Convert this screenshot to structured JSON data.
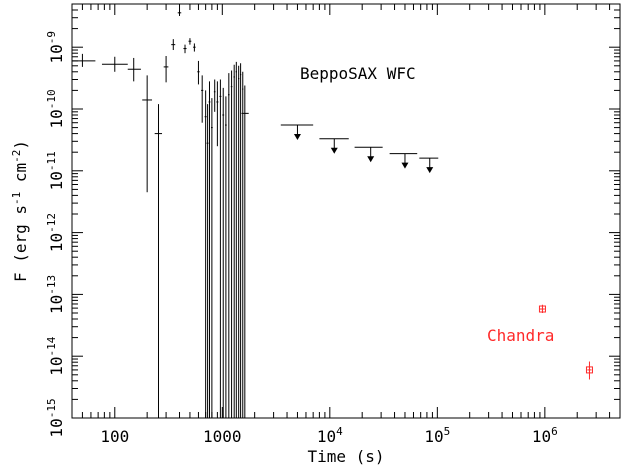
{
  "chart_data": {
    "type": "scatter",
    "title": "",
    "xlabel": "Time (s)",
    "ylabel_parts": {
      "lead": "F (erg s",
      "exp1": "-1",
      "mid": " cm",
      "exp2": "-2",
      "tail": ")"
    },
    "x_scale": "log",
    "y_scale": "log",
    "xlim": [
      40,
      5000000
    ],
    "ylim": [
      1e-15,
      5e-09
    ],
    "x_ticks": [
      {
        "value": 100,
        "base": "100",
        "exp": ""
      },
      {
        "value": 1000,
        "base": "1000",
        "exp": ""
      },
      {
        "value": 10000,
        "base": "10",
        "exp": "4"
      },
      {
        "value": 100000,
        "base": "10",
        "exp": "5"
      },
      {
        "value": 1000000,
        "base": "10",
        "exp": "6"
      }
    ],
    "y_ticks": [
      {
        "value": 1e-15,
        "base": "10",
        "exp": "-15"
      },
      {
        "value": 1e-14,
        "base": "10",
        "exp": "-14"
      },
      {
        "value": 1e-13,
        "base": "10",
        "exp": "-13"
      },
      {
        "value": 1e-12,
        "base": "10",
        "exp": "-12"
      },
      {
        "value": 1e-11,
        "base": "10",
        "exp": "-11"
      },
      {
        "value": 1e-10,
        "base": "10",
        "exp": "-10"
      },
      {
        "value": 1e-09,
        "base": "10",
        "exp": "-9"
      }
    ],
    "annotations": [
      {
        "text": "BeppoSAX WFC",
        "color": "#000000"
      },
      {
        "text": "Chandra",
        "color": "#ff2a2a"
      }
    ],
    "series": [
      {
        "name": "BeppoSAX WFC",
        "color": "#000000",
        "points": [
          {
            "x": 50,
            "y": 6e-10,
            "xerr": [
              40,
              66
            ],
            "yerr": [
              4.8e-10,
              7.8e-10
            ]
          },
          {
            "x": 100,
            "y": 5.3e-10,
            "xerr": [
              76,
              132
            ],
            "yerr": [
              4e-10,
              7e-10
            ]
          },
          {
            "x": 150,
            "y": 4.4e-10,
            "xerr": [
              132,
              175
            ],
            "yerr": [
              2.8e-10,
              6.7e-10
            ]
          },
          {
            "x": 200,
            "y": 1.4e-10,
            "xerr": [
              180,
              222
            ],
            "yerr": [
              4.5e-12,
              3.5e-10
            ]
          },
          {
            "x": 255,
            "y": 4e-11,
            "xerr": [
              235,
              275
            ],
            "yerr": [
              1e-15,
              1.2e-10
            ]
          },
          {
            "x": 300,
            "y": 4.8e-10,
            "xerr": [
              285,
              315
            ],
            "yerr": [
              2.7e-10,
              7.2e-10
            ]
          },
          {
            "x": 350,
            "y": 1.1e-09,
            "xerr": [
              335,
              365
            ],
            "yerr": [
              9e-10,
              1.35e-09
            ]
          },
          {
            "x": 400,
            "y": 3.6e-09,
            "xerr": [
              385,
              415
            ],
            "yerr": [
              3.2e-09,
              4e-09
            ]
          },
          {
            "x": 450,
            "y": 9.5e-10,
            "xerr": [
              435,
              465
            ],
            "yerr": [
              8e-10,
              1.1e-09
            ]
          },
          {
            "x": 500,
            "y": 1.25e-09,
            "xerr": [
              485,
              515
            ],
            "yerr": [
              1.1e-09,
              1.4e-09
            ]
          },
          {
            "x": 550,
            "y": 1e-09,
            "xerr": [
              535,
              565
            ],
            "yerr": [
              8.5e-10,
              1.15e-09
            ]
          },
          {
            "x": 600,
            "y": 4e-10,
            "xerr": [
              585,
              615
            ],
            "yerr": [
              2.5e-10,
              6e-10
            ]
          },
          {
            "x": 650,
            "y": 2e-10,
            "xerr": [
              635,
              665
            ],
            "yerr": [
              6e-11,
              3.5e-10
            ]
          },
          {
            "x": 700,
            "y": 7.5e-11,
            "xerr": [
              685,
              715
            ],
            "yerr": [
              1e-15,
              2e-10
            ]
          },
          {
            "x": 730,
            "y": 2.8e-11,
            "xerr": [
              715,
              745
            ],
            "yerr": [
              1e-15,
              1.2e-10
            ]
          },
          {
            "x": 760,
            "y": 1.3e-10,
            "xerr": [
              745,
              775
            ],
            "yerr": [
              1e-15,
              2.8e-10
            ]
          },
          {
            "x": 800,
            "y": 5e-11,
            "xerr": [
              785,
              815
            ],
            "yerr": [
              1e-15,
              1.5e-10
            ]
          },
          {
            "x": 850,
            "y": 1.9e-10,
            "xerr": [
              835,
              865
            ],
            "yerr": [
              9e-11,
              3e-10
            ]
          },
          {
            "x": 900,
            "y": 1.3e-10,
            "xerr": [
              880,
              920
            ],
            "yerr": [
              2.5e-11,
              2.8e-10
            ]
          },
          {
            "x": 960,
            "y": 1.6e-10,
            "xerr": [
              940,
              980
            ],
            "yerr": [
              1e-15,
              3e-10
            ]
          },
          {
            "x": 1020,
            "y": 8e-11,
            "xerr": [
              1000,
              1040
            ],
            "yerr": [
              1e-15,
              2.2e-10
            ]
          },
          {
            "x": 1080,
            "y": 5.5e-11,
            "xerr": [
              1060,
              1100
            ],
            "yerr": [
              1e-15,
              1.6e-10
            ]
          },
          {
            "x": 1150,
            "y": 1.7e-10,
            "xerr": [
              1130,
              1170
            ],
            "yerr": [
              1e-15,
              3.8e-10
            ]
          },
          {
            "x": 1220,
            "y": 2.3e-10,
            "xerr": [
              1200,
              1240
            ],
            "yerr": [
              1e-15,
              4.2e-10
            ]
          },
          {
            "x": 1290,
            "y": 3.3e-10,
            "xerr": [
              1270,
              1310
            ],
            "yerr": [
              1e-15,
              5.2e-10
            ]
          },
          {
            "x": 1350,
            "y": 4e-10,
            "xerr": [
              1330,
              1370
            ],
            "yerr": [
              1e-15,
              5.8e-10
            ]
          },
          {
            "x": 1420,
            "y": 3.1e-10,
            "xerr": [
              1400,
              1440
            ],
            "yerr": [
              1e-15,
              5e-10
            ]
          },
          {
            "x": 1480,
            "y": 3.6e-10,
            "xerr": [
              1460,
              1500
            ],
            "yerr": [
              1e-15,
              5.5e-10
            ]
          },
          {
            "x": 1550,
            "y": 2.1e-10,
            "xerr": [
              1530,
              1570
            ],
            "yerr": [
              1e-15,
              4e-10
            ]
          },
          {
            "x": 1620,
            "y": 8.5e-11,
            "xerr": [
              1510,
              1760
            ],
            "yerr": [
              1e-15,
              2.4e-10
            ]
          }
        ],
        "upper_limits": [
          {
            "x": 5000,
            "y": 5.5e-11,
            "xerr": [
              3500,
              7000
            ]
          },
          {
            "x": 11000,
            "y": 3.3e-11,
            "xerr": [
              8000,
              15000
            ]
          },
          {
            "x": 24000,
            "y": 2.4e-11,
            "xerr": [
              17000,
              31000
            ]
          },
          {
            "x": 50000,
            "y": 1.9e-11,
            "xerr": [
              36000,
              65000
            ]
          },
          {
            "x": 85000,
            "y": 1.6e-11,
            "xerr": [
              68000,
              102000
            ]
          }
        ]
      },
      {
        "name": "Chandra",
        "color": "#ff2a2a",
        "points": [
          {
            "x": 950000,
            "y": 5.8e-14,
            "xerr": [
              900000,
              1000000
            ],
            "yerr": [
              5e-14,
              6.8e-14
            ]
          },
          {
            "x": 2600000,
            "y": 6e-15,
            "xerr": [
              2480000,
              2720000
            ],
            "yerr": [
              4.2e-15,
              8.2e-15
            ]
          }
        ]
      }
    ]
  }
}
